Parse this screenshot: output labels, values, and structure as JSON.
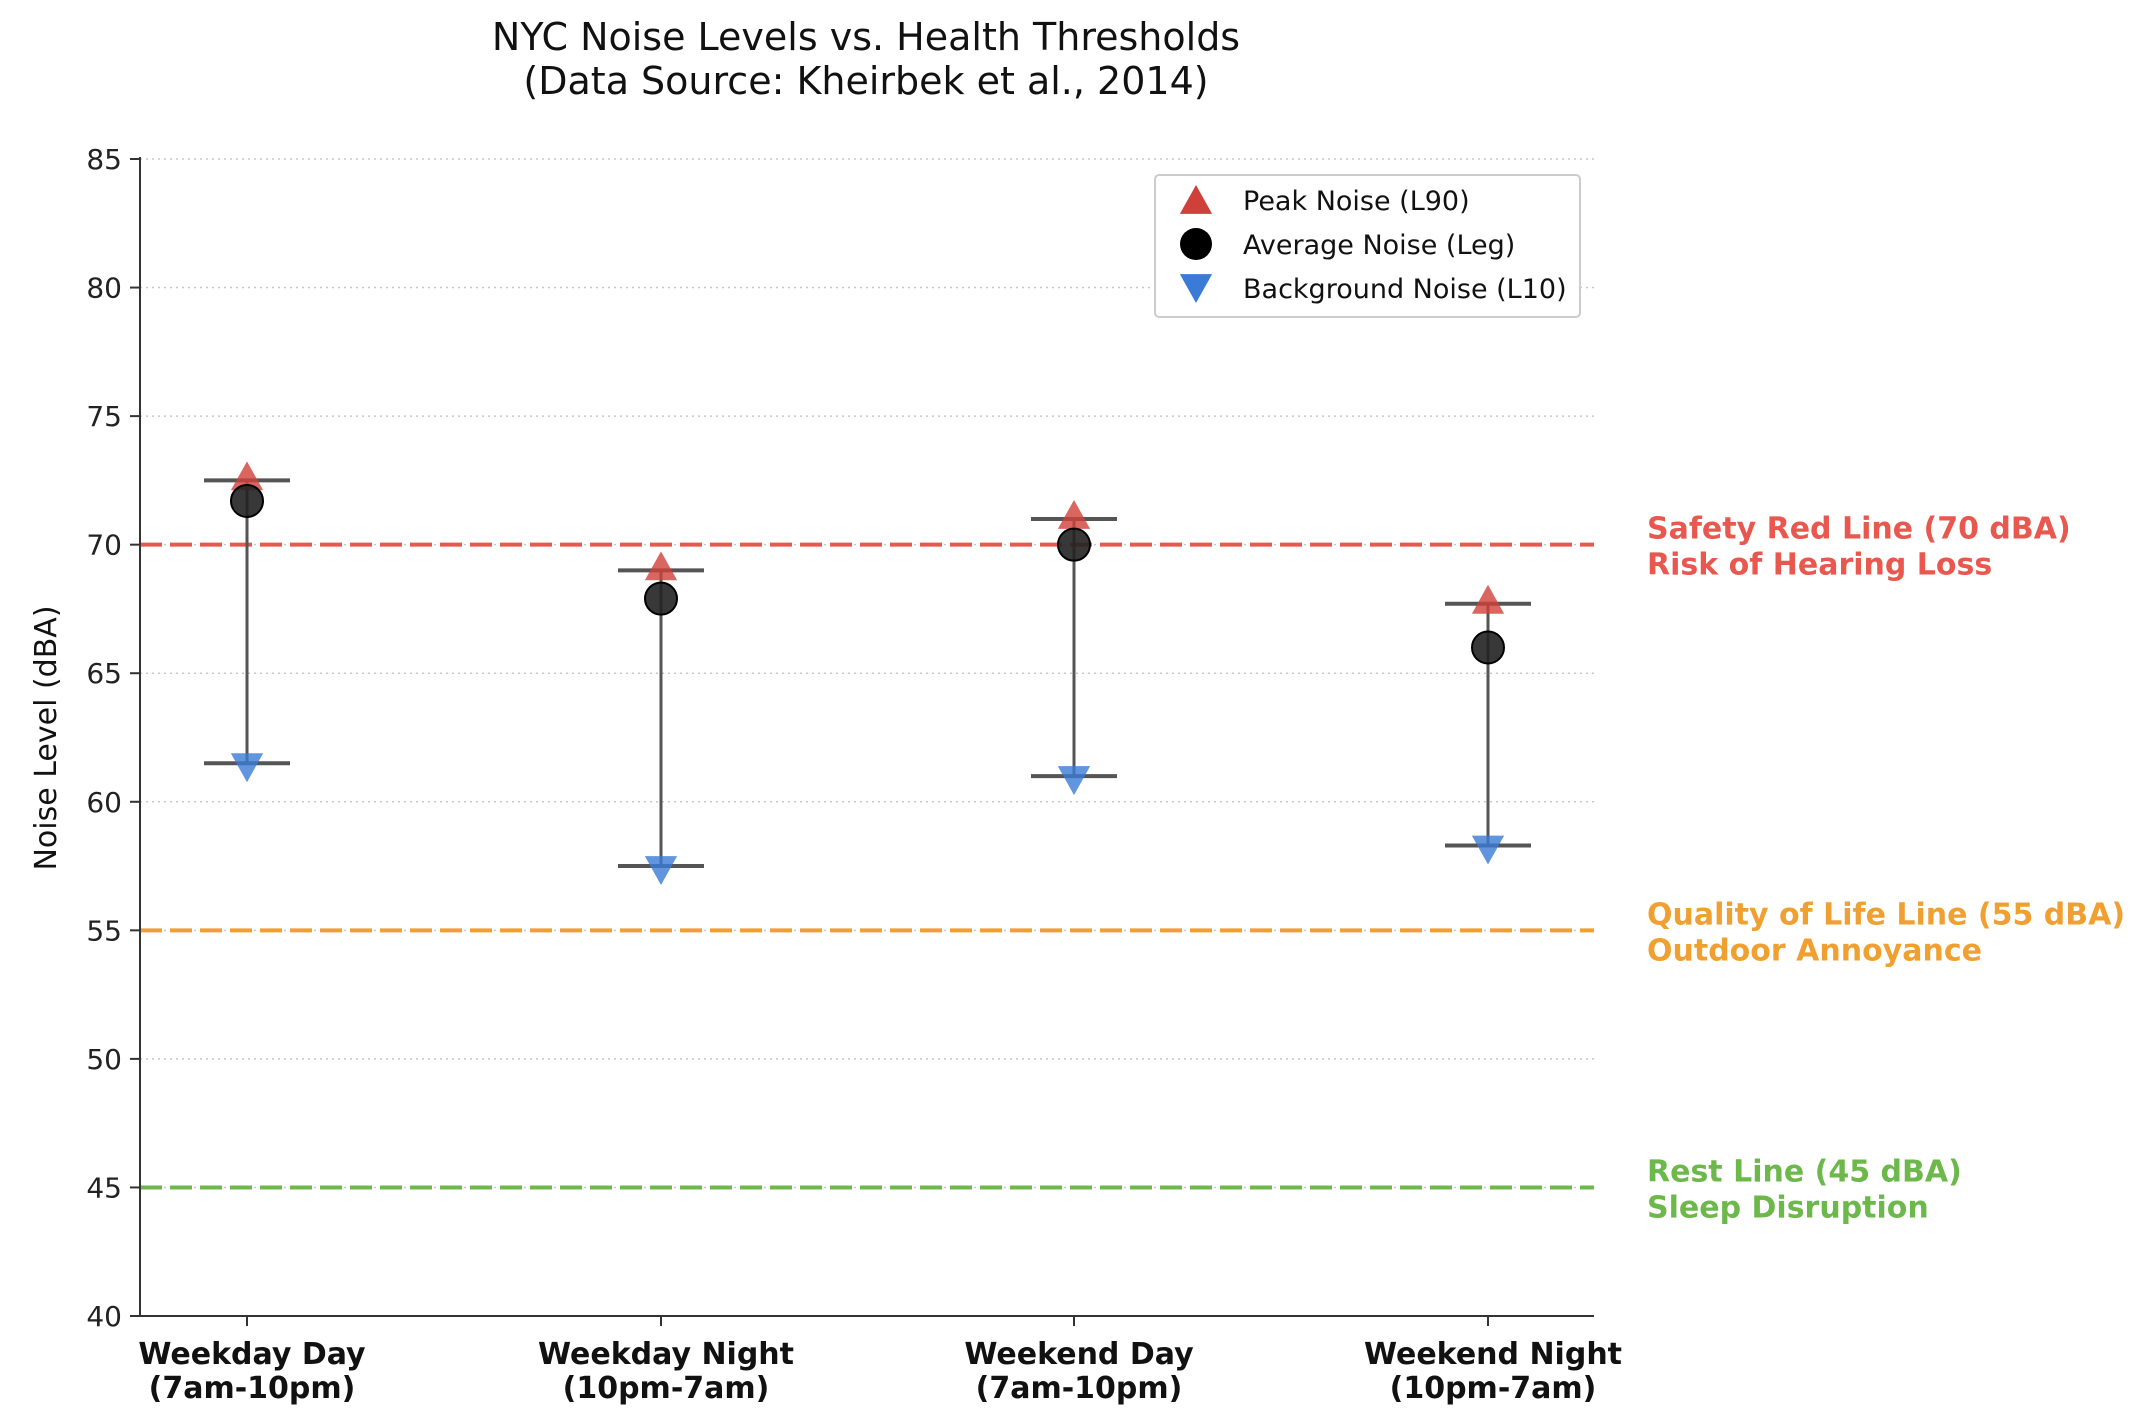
{
  "chart_data": {
    "type": "scatter",
    "title": "NYC Noise Levels vs. Health Thresholds",
    "subtitle": "(Data Source: Kheirbek et al., 2014)",
    "xlabel": "",
    "ylabel": "Noise Level (dBA)",
    "ylim": [
      40,
      85
    ],
    "yticks": [
      40,
      45,
      50,
      55,
      60,
      65,
      70,
      75,
      80,
      85
    ],
    "grid": "horizontal dotted",
    "legend_position": "top-right",
    "categories": [
      {
        "line1": "Weekday Day",
        "line2": "(7am-10pm)"
      },
      {
        "line1": "Weekday Night",
        "line2": "(10pm-7am)"
      },
      {
        "line1": "Weekend Day",
        "line2": "(7am-10pm)"
      },
      {
        "line1": "Weekend Night",
        "line2": "(10pm-7am)"
      }
    ],
    "series": [
      {
        "name": "Peak Noise (L90)",
        "marker": "triangle-up",
        "color": "#d0403a",
        "values": [
          72.5,
          69.0,
          71.0,
          67.7
        ]
      },
      {
        "name": "Average Noise (Leq)",
        "marker": "circle",
        "color": "#111111",
        "values": [
          71.7,
          67.9,
          70.0,
          66.0
        ]
      },
      {
        "name": "Background Noise (L10)",
        "marker": "triangle-down",
        "color": "#3a7bd5",
        "values": [
          61.5,
          57.5,
          61.0,
          58.3
        ]
      }
    ],
    "legend_labels": [
      "Peak Noise (L90)",
      "Average Noise (Leg)",
      "Background Noise (L10)"
    ],
    "thresholds": [
      {
        "value": 70,
        "color": "#e8584e",
        "line1": "Safety Red Line (70 dBA)",
        "line2": "Risk of Hearing Loss"
      },
      {
        "value": 55,
        "color": "#f0a030",
        "line1": "Quality of Life Line (55 dBA)",
        "line2": "Outdoor Annoyance"
      },
      {
        "value": 45,
        "color": "#6cb84a",
        "line1": "Rest Line (45 dBA)",
        "line2": "Sleep Disruption"
      }
    ]
  }
}
